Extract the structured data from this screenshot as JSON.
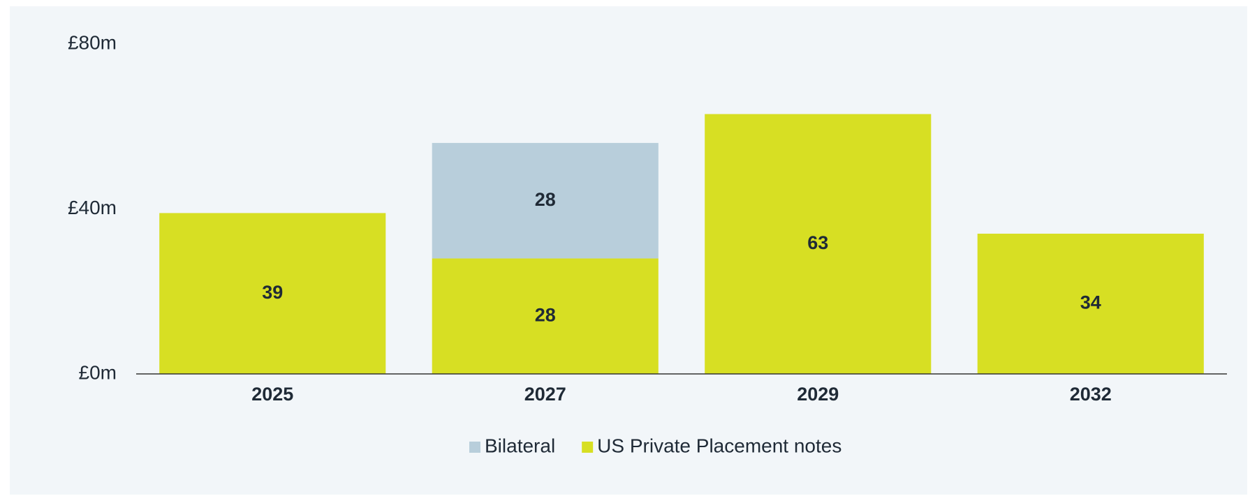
{
  "chart_data": {
    "type": "stacked_bar",
    "categories": [
      "2025",
      "2027",
      "2029",
      "2032"
    ],
    "series": [
      {
        "name": "Bilateral",
        "color": "#b8cedb",
        "values": [
          null,
          28,
          null,
          null
        ]
      },
      {
        "name": "US Private Placement notes",
        "color": "#d7df23",
        "values": [
          39,
          28,
          63,
          34
        ]
      }
    ],
    "ylim": [
      0,
      80
    ],
    "yticks": [
      {
        "value": 0,
        "label": "£0m"
      },
      {
        "value": 40,
        "label": "£40m"
      },
      {
        "value": 80,
        "label": "£80m"
      }
    ],
    "grid": false,
    "legend": "bottom"
  }
}
